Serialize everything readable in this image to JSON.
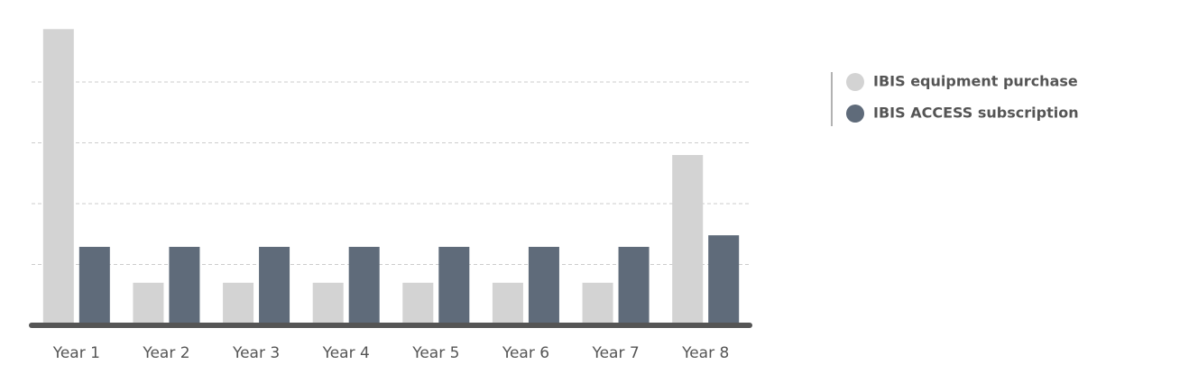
{
  "chart_data": {
    "type": "bar",
    "categories": [
      "Year 1",
      "Year 2",
      "Year 3",
      "Year 4",
      "Year 5",
      "Year 6",
      "Year 7",
      "Year 8"
    ],
    "series": [
      {
        "name": "IBIS equipment purchase",
        "color": "#d3d3d3",
        "values": [
          4.87,
          0.7,
          0.7,
          0.7,
          0.7,
          0.7,
          0.7,
          2.8
        ]
      },
      {
        "name": "IBIS ACCESS subscription",
        "color": "#5f6b7a",
        "values": [
          1.29,
          1.29,
          1.29,
          1.29,
          1.29,
          1.29,
          1.29,
          1.48
        ]
      }
    ],
    "ylim": [
      0,
      5
    ],
    "yticks": [
      1,
      2,
      3,
      4
    ],
    "grid": true
  }
}
